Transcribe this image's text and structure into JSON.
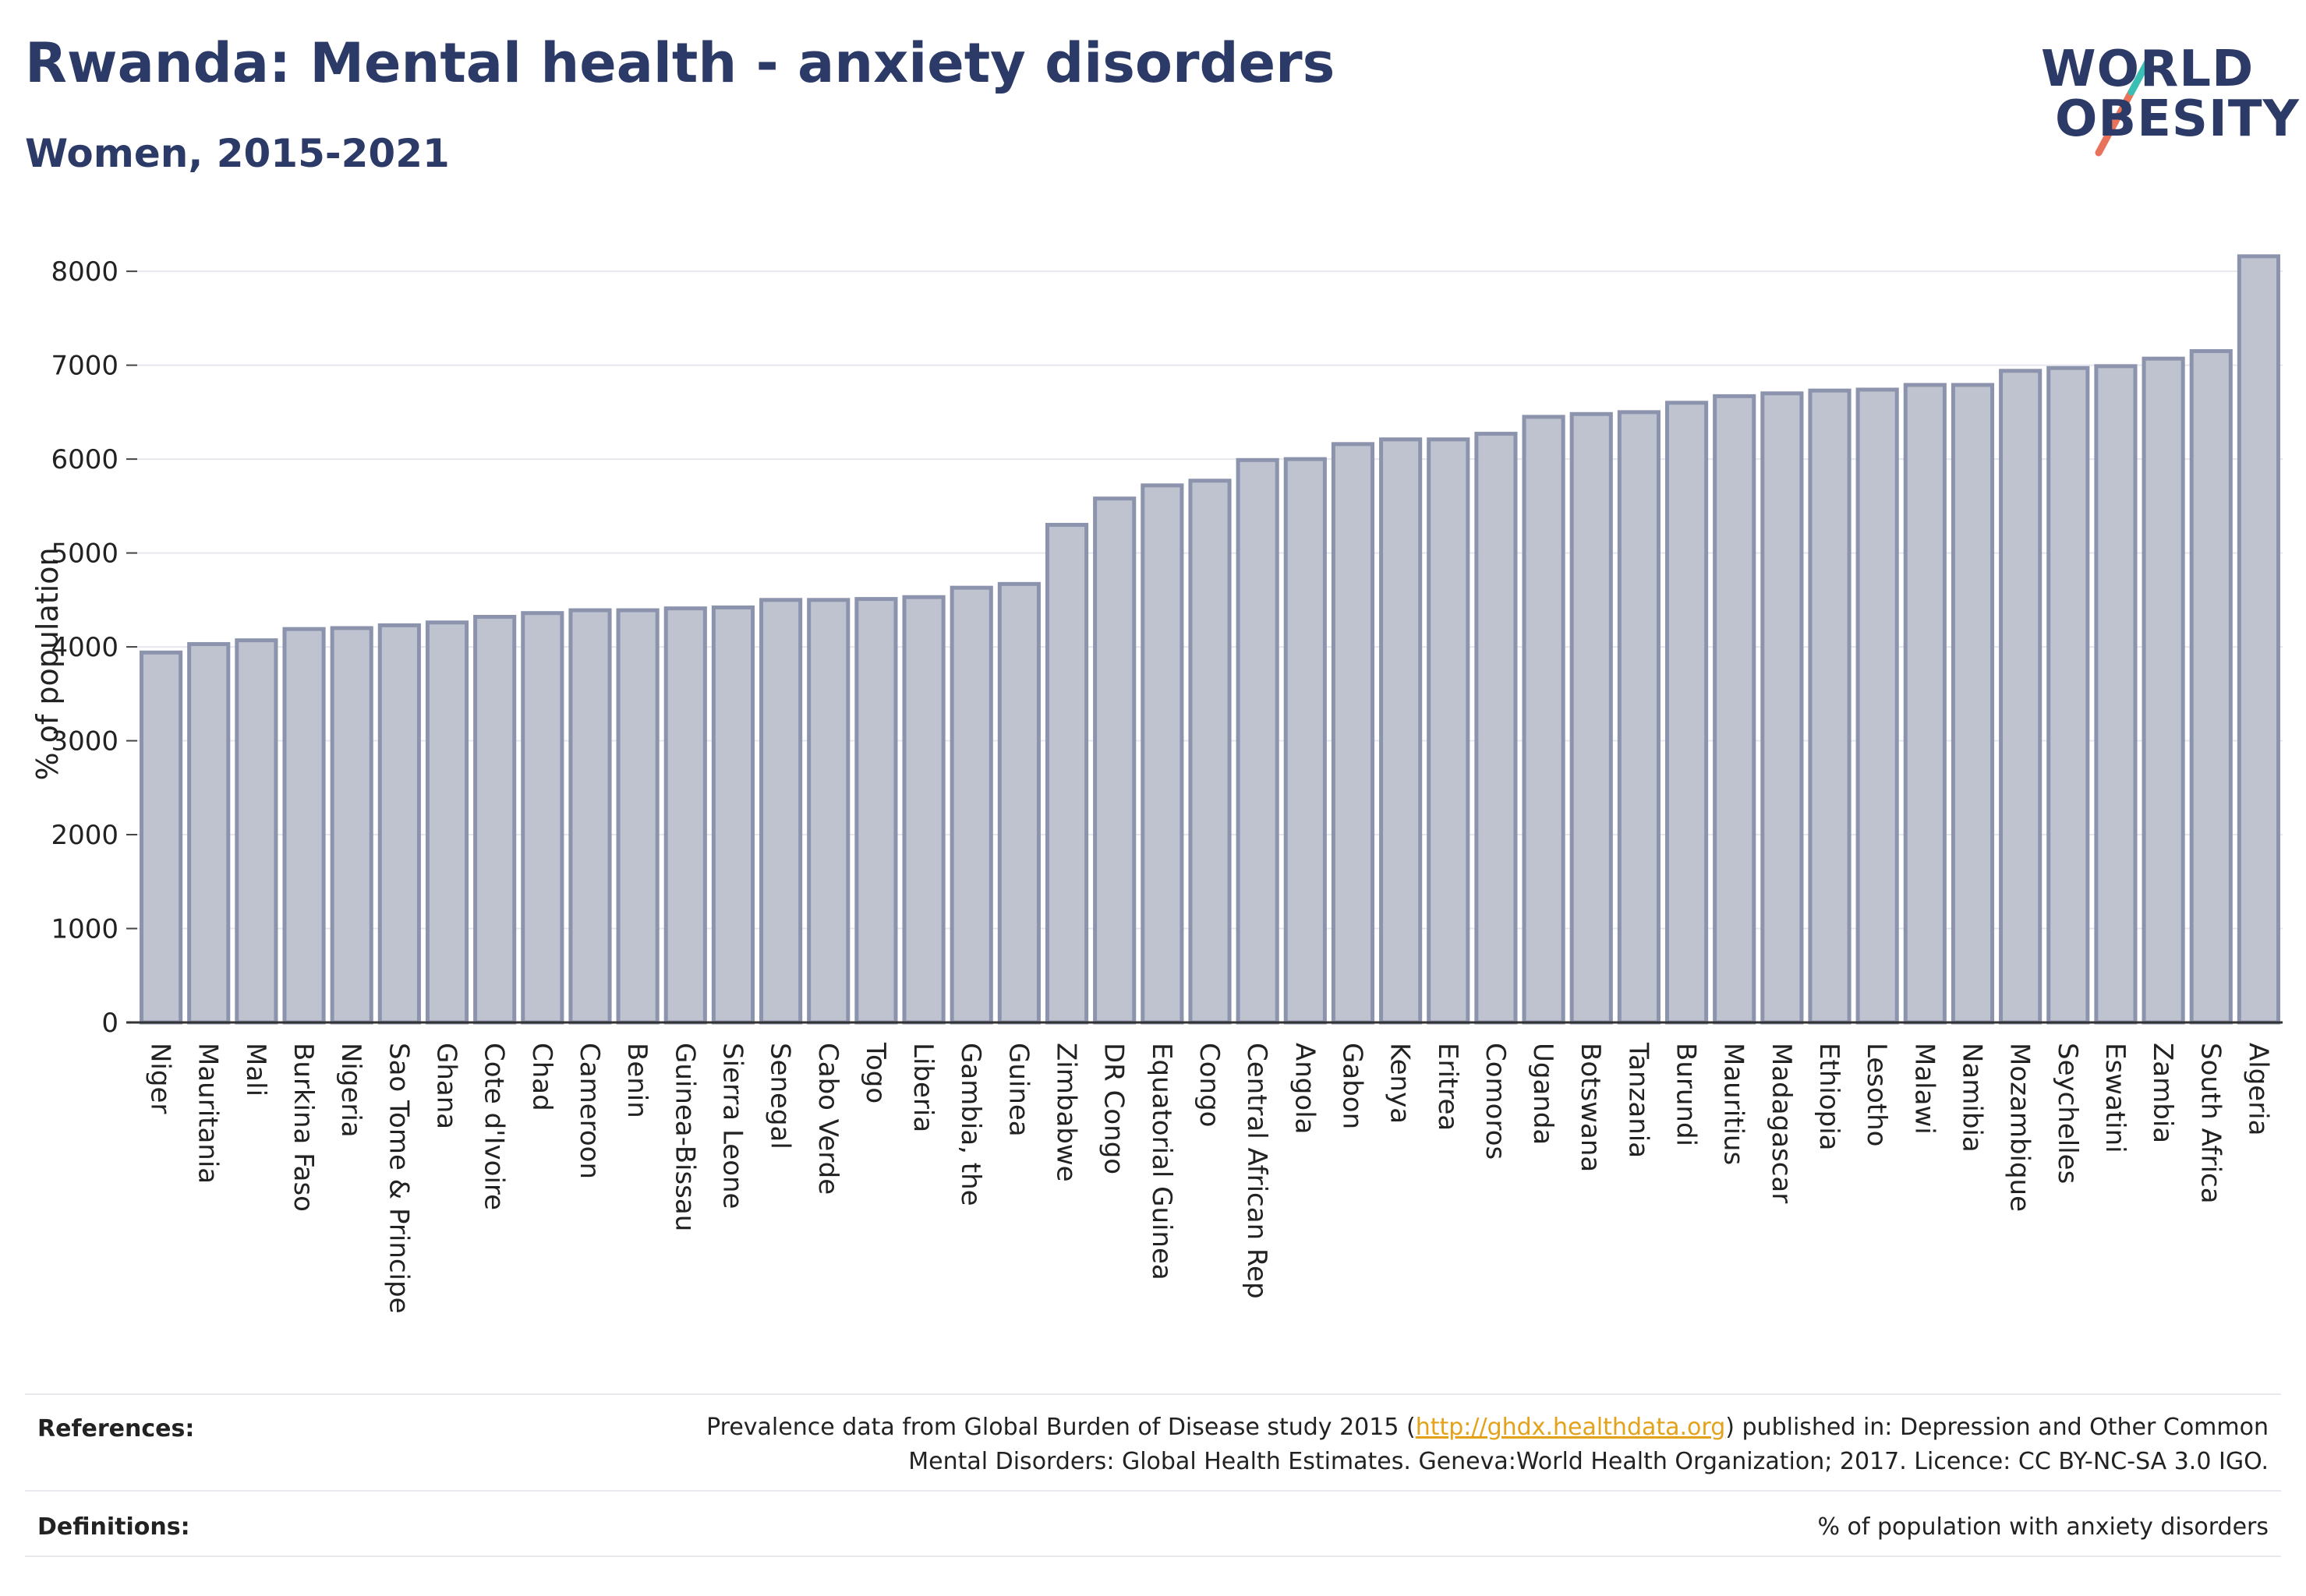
{
  "header": {
    "title": "Rwanda: Mental health - anxiety disorders",
    "subtitle": "Women, 2015-2021"
  },
  "logo": {
    "line1": "WORLD",
    "line2": "OBESITY",
    "slash_colors": [
      "#e8735a",
      "#3bbfb5"
    ]
  },
  "colors": {
    "brand": "#2b3a67",
    "bar_fill": "#bfc3d0",
    "bar_stroke": "#8c93ad",
    "link": "#e3a21a"
  },
  "chart_data": {
    "type": "bar",
    "ylabel": "% of population",
    "ylim": [
      0,
      8300
    ],
    "yticks": [
      0,
      1000,
      2000,
      3000,
      4000,
      5000,
      6000,
      7000,
      8000
    ],
    "grid": true,
    "categories": [
      "Niger",
      "Mauritania",
      "Mali",
      "Burkina Faso",
      "Nigeria",
      "Sao Tome & Principe",
      "Ghana",
      "Cote d'Ivoire",
      "Chad",
      "Cameroon",
      "Benin",
      "Guinea-Bissau",
      "Sierra Leone",
      "Senegal",
      "Cabo Verde",
      "Togo",
      "Liberia",
      "Gambia, the",
      "Guinea",
      "Zimbabwe",
      "DR Congo",
      "Equatorial Guinea",
      "Congo",
      "Central African Rep",
      "Angola",
      "Gabon",
      "Kenya",
      "Eritrea",
      "Comoros",
      "Uganda",
      "Botswana",
      "Tanzania",
      "Burundi",
      "Mauritius",
      "Madagascar",
      "Ethiopia",
      "Lesotho",
      "Malawi",
      "Namibia",
      "Mozambique",
      "Seychelles",
      "Eswatini",
      "Zambia",
      "South Africa",
      "Algeria"
    ],
    "values": [
      3940,
      4030,
      4070,
      4190,
      4200,
      4230,
      4260,
      4320,
      4360,
      4390,
      4390,
      4410,
      4420,
      4500,
      4500,
      4510,
      4530,
      4630,
      4670,
      5300,
      5580,
      5720,
      5770,
      5990,
      6000,
      6160,
      6210,
      6210,
      6270,
      6450,
      6480,
      6500,
      6600,
      6670,
      6700,
      6730,
      6740,
      6790,
      6790,
      6940,
      6970,
      6990,
      7070,
      7150,
      8160
    ]
  },
  "footer": {
    "references_label": "References:",
    "references_pre": "Prevalence data from Global Burden of Disease study 2015 (",
    "references_link": "http://ghdx.healthdata.org",
    "references_post": ") published in: Depression and Other Common",
    "references_line2": "Mental Disorders: Global Health Estimates. Geneva:World Health Organization; 2017. Licence: CC BY-NC-SA 3.0 IGO.",
    "definitions_label": "Definitions:",
    "definitions_text": "% of population with anxiety disorders"
  }
}
